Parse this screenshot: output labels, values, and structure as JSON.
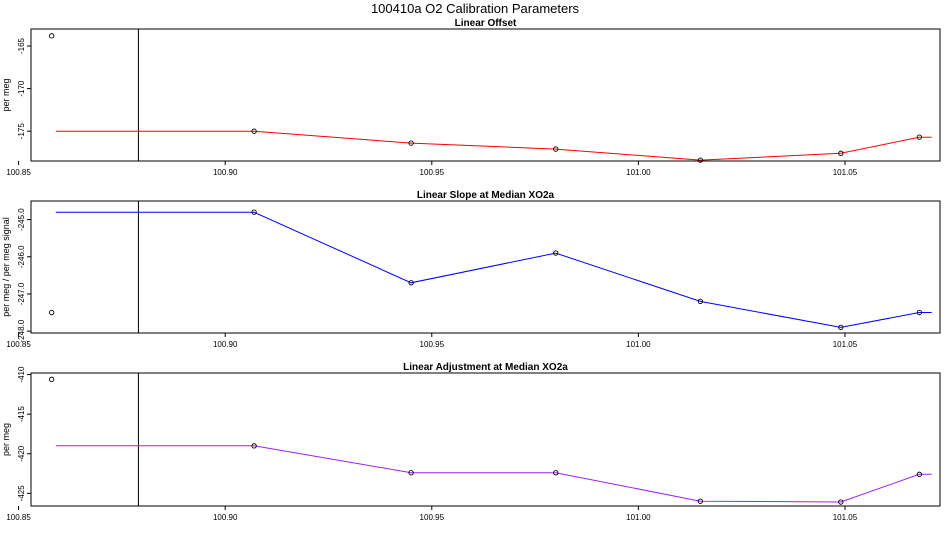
{
  "title": "100410a   O2 Calibration Parameters",
  "chart_data": [
    {
      "type": "line",
      "title": "Linear Offset",
      "ylabel": "per meg",
      "xlim": [
        100.853,
        101.073
      ],
      "ylim": [
        -178.5,
        -163.0
      ],
      "xticks": [
        100.85,
        100.9,
        100.95,
        101.0,
        101.05
      ],
      "xtick_labels": [
        "100.85",
        "100.90",
        "100.95",
        "101.00",
        "101.05"
      ],
      "yticks": [
        -165,
        -170,
        -175
      ],
      "ytick_labels": [
        "-165",
        "-170",
        "-175"
      ],
      "line_color": "#ff0000",
      "vline_x": 100.879,
      "line": {
        "x": [
          100.859,
          100.907,
          100.945,
          100.98,
          101.015,
          101.049,
          101.068,
          101.071
        ],
        "y": [
          -175.0,
          -175.0,
          -176.4,
          -177.1,
          -178.4,
          -177.6,
          -175.7,
          -175.7
        ]
      },
      "points": {
        "x": [
          100.858,
          100.907,
          100.945,
          100.98,
          101.015,
          101.049,
          101.068
        ],
        "y": [
          -163.8,
          -175.0,
          -176.4,
          -177.1,
          -178.4,
          -177.6,
          -175.7
        ]
      }
    },
    {
      "type": "line",
      "title": "Linear Slope at Median XO2a",
      "ylabel": "per meg / per meg signal",
      "xlim": [
        100.853,
        101.073
      ],
      "ylim": [
        -248.05,
        -244.5
      ],
      "xticks": [
        100.85,
        100.9,
        100.95,
        101.0,
        101.05
      ],
      "xtick_labels": [
        "100.85",
        "100.90",
        "100.95",
        "101.00",
        "101.05"
      ],
      "yticks": [
        -245.0,
        -246.0,
        -247.0,
        -248.0
      ],
      "ytick_labels": [
        "-245.0",
        "-246.0",
        "-247.0",
        "-248.0"
      ],
      "line_color": "#0000ff",
      "vline_x": 100.879,
      "line": {
        "x": [
          100.859,
          100.907,
          100.945,
          100.98,
          101.015,
          101.049,
          101.068,
          101.071
        ],
        "y": [
          -244.8,
          -244.8,
          -246.7,
          -245.9,
          -247.2,
          -247.9,
          -247.5,
          -247.5
        ]
      },
      "points": {
        "x": [
          100.858,
          100.907,
          100.945,
          100.98,
          101.015,
          101.049,
          101.068
        ],
        "y": [
          -247.5,
          -244.8,
          -246.7,
          -245.9,
          -247.2,
          -247.9,
          -247.5
        ]
      }
    },
    {
      "type": "line",
      "title": "Linear Adjustment at Median XO2a",
      "ylabel": "per meg",
      "xlim": [
        100.853,
        101.073
      ],
      "ylim": [
        -426.6,
        -409.8
      ],
      "xticks": [
        100.85,
        100.9,
        100.95,
        101.0,
        101.05
      ],
      "xtick_labels": [
        "100.85",
        "100.90",
        "100.95",
        "101.00",
        "101.05"
      ],
      "yticks": [
        -410,
        -415,
        -420,
        -425
      ],
      "ytick_labels": [
        "-410",
        "-415",
        "-420",
        "-425"
      ],
      "line_color": "#a020f0",
      "vline_x": 100.879,
      "line": {
        "x": [
          100.859,
          100.907,
          100.945,
          100.98,
          101.015,
          101.049,
          101.068,
          101.071
        ],
        "y": [
          -419.0,
          -419.0,
          -422.4,
          -422.4,
          -426.0,
          -426.1,
          -422.6,
          -422.6
        ]
      },
      "points": {
        "x": [
          100.858,
          100.907,
          100.945,
          100.98,
          101.015,
          101.049,
          101.068
        ],
        "y": [
          -410.6,
          -419.0,
          -422.4,
          -422.4,
          -426.0,
          -426.1,
          -422.6
        ]
      }
    }
  ]
}
